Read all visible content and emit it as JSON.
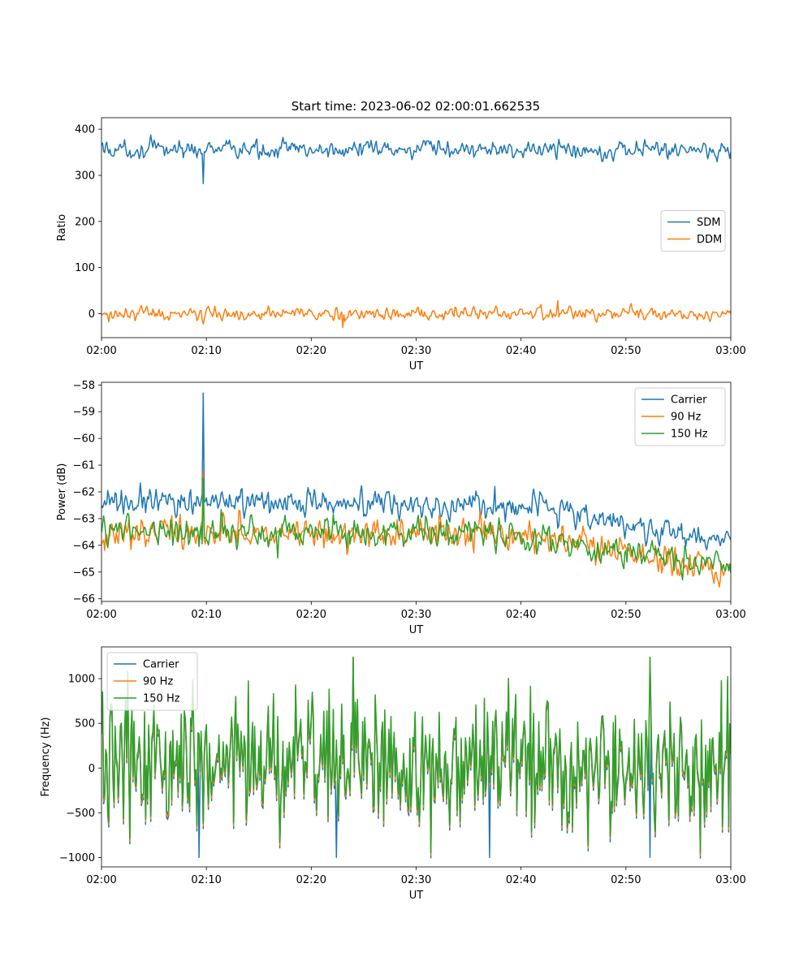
{
  "title": "Start time: 2023-06-02 02:00:01.662535",
  "colors": {
    "c0": "#1f77b4",
    "c1": "#ff7f0e",
    "c2": "#2ca02c"
  },
  "chart_data": [
    {
      "type": "line",
      "xlabel": "UT",
      "ylabel": "Ratio",
      "xlim": [
        "02:00",
        "03:00"
      ],
      "xticks": [
        "02:00",
        "02:10",
        "02:20",
        "02:30",
        "02:40",
        "02:50",
        "03:00"
      ],
      "ylim": [
        -52,
        425
      ],
      "yticks": [
        0,
        100,
        200,
        300,
        400
      ],
      "legend": {
        "loc": "center-right"
      },
      "series": [
        {
          "name": "SDM",
          "color": "#1f77b4",
          "base": 356,
          "noise": 14,
          "spikes": [
            [
              9.7,
              282
            ]
          ]
        },
        {
          "name": "DDM",
          "color": "#ff7f0e",
          "base": 0,
          "noise": 10,
          "spikes": [
            [
              43.5,
              28
            ],
            [
              23.0,
              -30
            ]
          ]
        }
      ]
    },
    {
      "type": "line",
      "xlabel": "UT",
      "ylabel": "Power (dB)",
      "xlim": [
        "02:00",
        "03:00"
      ],
      "xticks": [
        "02:00",
        "02:10",
        "02:20",
        "02:30",
        "02:40",
        "02:50",
        "03:00"
      ],
      "ylim": [
        -66.1,
        -57.9
      ],
      "yticks": [
        -66,
        -65,
        -64,
        -63,
        -62,
        -61,
        -60,
        -59,
        -58
      ],
      "legend": {
        "loc": "top-right"
      },
      "series": [
        {
          "name": "Carrier",
          "color": "#1f77b4",
          "trend": [
            [
              0,
              -62.4
            ],
            [
              40,
              -62.5
            ],
            [
              60,
              -63.9
            ]
          ],
          "noise": 0.35,
          "spikes": [
            [
              9.7,
              -58.3
            ],
            [
              37.5,
              -61.8
            ]
          ]
        },
        {
          "name": "90 Hz",
          "color": "#ff7f0e",
          "trend": [
            [
              0,
              -63.5
            ],
            [
              40,
              -63.6
            ],
            [
              60,
              -65.0
            ]
          ],
          "noise": 0.4,
          "spikes": [
            [
              9.7,
              -61.2
            ]
          ]
        },
        {
          "name": "150 Hz",
          "color": "#2ca02c",
          "trend": [
            [
              0,
              -63.4
            ],
            [
              40,
              -63.6
            ],
            [
              60,
              -64.8
            ]
          ],
          "noise": 0.4,
          "spikes": [
            [
              9.7,
              -61.5
            ]
          ]
        }
      ]
    },
    {
      "type": "line",
      "xlabel": "UT",
      "ylabel": "Frequency (Hz)",
      "xlim": [
        "02:00",
        "03:00"
      ],
      "xticks": [
        "02:00",
        "02:10",
        "02:20",
        "02:30",
        "02:40",
        "02:50",
        "03:00"
      ],
      "ylim": [
        -1105,
        1355
      ],
      "yticks": [
        -1000,
        -500,
        0,
        500,
        1000
      ],
      "legend": {
        "loc": "top-left"
      },
      "series": [
        {
          "name": "Carrier",
          "color": "#1f77b4",
          "base": 0,
          "noise": 420,
          "spikes": [
            [
              24,
              1240
            ],
            [
              52.3,
              1240
            ],
            [
              22.4,
              -1000
            ],
            [
              37.0,
              -1000
            ],
            [
              52.3,
              -1000
            ],
            [
              9.3,
              -1000
            ]
          ]
        },
        {
          "name": "90 Hz",
          "color": "#ff7f0e",
          "base": 0,
          "noise": 420,
          "spikes": [
            [
              24,
              1240
            ],
            [
              52.3,
              1240
            ]
          ]
        },
        {
          "name": "150 Hz",
          "color": "#2ca02c",
          "base": 0,
          "noise": 420,
          "spikes": [
            [
              24,
              1240
            ],
            [
              52.3,
              1240
            ]
          ]
        }
      ]
    }
  ]
}
